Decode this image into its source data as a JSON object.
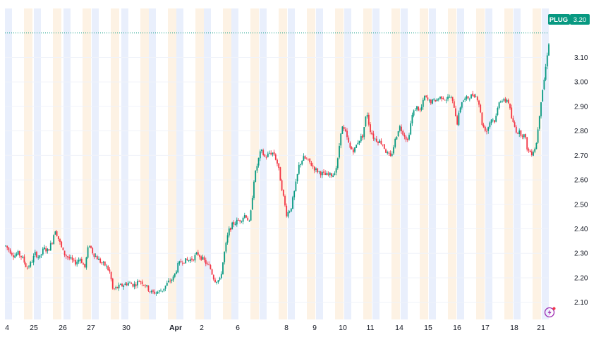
{
  "chart_data": {
    "type": "candlestick",
    "symbol": "PLUG",
    "last_price": "3.20",
    "ylim": [
      2.03,
      3.3
    ],
    "y_ticks": [
      "3.10",
      "3.00",
      "2.90",
      "2.80",
      "2.70",
      "2.60",
      "2.50",
      "2.40",
      "2.30",
      "2.20",
      "2.10"
    ],
    "x_ticks": [
      {
        "label": "4",
        "bold": false
      },
      {
        "label": "25",
        "bold": false
      },
      {
        "label": "26",
        "bold": false
      },
      {
        "label": "27",
        "bold": false
      },
      {
        "label": "30",
        "bold": false
      },
      {
        "label": "Apr",
        "bold": true
      },
      {
        "label": "2",
        "bold": false
      },
      {
        "label": "6",
        "bold": false
      },
      {
        "label": "8",
        "bold": false
      },
      {
        "label": "9",
        "bold": false
      },
      {
        "label": "10",
        "bold": false
      },
      {
        "label": "11",
        "bold": false
      },
      {
        "label": "14",
        "bold": false
      },
      {
        "label": "15",
        "bold": false
      },
      {
        "label": "16",
        "bold": false
      },
      {
        "label": "17",
        "bold": false
      },
      {
        "label": "18",
        "bold": false
      },
      {
        "label": "21",
        "bold": false
      }
    ],
    "price_path": [
      [
        0,
        2.33
      ],
      [
        6,
        2.31
      ],
      [
        12,
        2.29
      ],
      [
        18,
        2.3
      ],
      [
        24,
        2.28
      ],
      [
        30,
        2.24
      ],
      [
        36,
        2.26
      ],
      [
        42,
        2.3
      ],
      [
        48,
        2.28
      ],
      [
        54,
        2.32
      ],
      [
        60,
        2.31
      ],
      [
        66,
        2.35
      ],
      [
        70,
        2.4
      ],
      [
        76,
        2.35
      ],
      [
        82,
        2.3
      ],
      [
        90,
        2.28
      ],
      [
        98,
        2.26
      ],
      [
        106,
        2.28
      ],
      [
        112,
        2.24
      ],
      [
        118,
        2.34
      ],
      [
        124,
        2.3
      ],
      [
        130,
        2.28
      ],
      [
        136,
        2.26
      ],
      [
        142,
        2.25
      ],
      [
        148,
        2.22
      ],
      [
        152,
        2.15
      ],
      [
        158,
        2.16
      ],
      [
        166,
        2.17
      ],
      [
        174,
        2.18
      ],
      [
        182,
        2.17
      ],
      [
        190,
        2.19
      ],
      [
        198,
        2.17
      ],
      [
        206,
        2.14
      ],
      [
        214,
        2.14
      ],
      [
        222,
        2.15
      ],
      [
        230,
        2.18
      ],
      [
        238,
        2.2
      ],
      [
        244,
        2.25
      ],
      [
        250,
        2.27
      ],
      [
        258,
        2.27
      ],
      [
        266,
        2.28
      ],
      [
        272,
        2.3
      ],
      [
        278,
        2.28
      ],
      [
        284,
        2.26
      ],
      [
        290,
        2.24
      ],
      [
        296,
        2.19
      ],
      [
        304,
        2.19
      ],
      [
        310,
        2.3
      ],
      [
        316,
        2.39
      ],
      [
        322,
        2.42
      ],
      [
        328,
        2.43
      ],
      [
        334,
        2.44
      ],
      [
        340,
        2.46
      ],
      [
        346,
        2.42
      ],
      [
        352,
        2.6
      ],
      [
        358,
        2.68
      ],
      [
        362,
        2.72
      ],
      [
        368,
        2.69
      ],
      [
        374,
        2.71
      ],
      [
        380,
        2.71
      ],
      [
        386,
        2.66
      ],
      [
        392,
        2.56
      ],
      [
        398,
        2.46
      ],
      [
        404,
        2.48
      ],
      [
        410,
        2.56
      ],
      [
        416,
        2.66
      ],
      [
        422,
        2.69
      ],
      [
        428,
        2.68
      ],
      [
        434,
        2.66
      ],
      [
        440,
        2.64
      ],
      [
        446,
        2.63
      ],
      [
        452,
        2.62
      ],
      [
        458,
        2.62
      ],
      [
        464,
        2.62
      ],
      [
        470,
        2.66
      ],
      [
        476,
        2.82
      ],
      [
        482,
        2.79
      ],
      [
        488,
        2.73
      ],
      [
        494,
        2.72
      ],
      [
        500,
        2.76
      ],
      [
        506,
        2.78
      ],
      [
        512,
        2.88
      ],
      [
        516,
        2.81
      ],
      [
        522,
        2.77
      ],
      [
        528,
        2.76
      ],
      [
        534,
        2.75
      ],
      [
        540,
        2.71
      ],
      [
        546,
        2.69
      ],
      [
        552,
        2.76
      ],
      [
        558,
        2.82
      ],
      [
        564,
        2.79
      ],
      [
        570,
        2.76
      ],
      [
        576,
        2.86
      ],
      [
        582,
        2.9
      ],
      [
        588,
        2.88
      ],
      [
        594,
        2.94
      ],
      [
        600,
        2.92
      ],
      [
        606,
        2.92
      ],
      [
        612,
        2.93
      ],
      [
        618,
        2.94
      ],
      [
        624,
        2.93
      ],
      [
        630,
        2.94
      ],
      [
        636,
        2.9
      ],
      [
        640,
        2.83
      ],
      [
        646,
        2.92
      ],
      [
        652,
        2.93
      ],
      [
        658,
        2.94
      ],
      [
        664,
        2.95
      ],
      [
        670,
        2.93
      ],
      [
        676,
        2.82
      ],
      [
        682,
        2.8
      ],
      [
        688,
        2.85
      ],
      [
        694,
        2.84
      ],
      [
        700,
        2.93
      ],
      [
        706,
        2.92
      ],
      [
        712,
        2.93
      ],
      [
        718,
        2.84
      ],
      [
        724,
        2.8
      ],
      [
        730,
        2.79
      ],
      [
        736,
        2.78
      ],
      [
        740,
        2.72
      ],
      [
        746,
        2.71
      ],
      [
        752,
        2.74
      ],
      [
        756,
        2.85
      ],
      [
        760,
        2.95
      ],
      [
        764,
        3.02
      ],
      [
        768,
        3.12
      ],
      [
        772,
        3.2
      ],
      [
        776,
        3.2
      ]
    ]
  }
}
